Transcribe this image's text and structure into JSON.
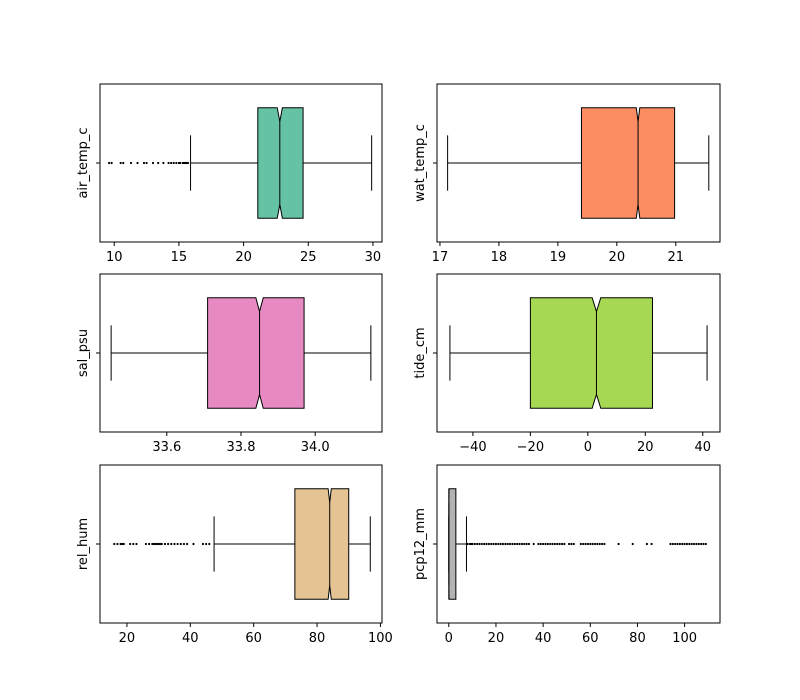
{
  "chart_data": [
    {
      "type": "box",
      "notched": true,
      "orientation": "horizontal",
      "ylabel": "air_temp_c",
      "color": "#66c2a5",
      "xlim": [
        8.9,
        30.7
      ],
      "xticks": [
        10,
        15,
        20,
        25,
        30
      ],
      "box": {
        "whisker_low": 15.9,
        "q1": 21.1,
        "median": 22.8,
        "q3": 24.6,
        "whisker_high": 29.9,
        "notch_low": 22.6,
        "notch_high": 23.0
      },
      "outliers": [
        9.6,
        9.8,
        10.5,
        10.7,
        11.3,
        11.8,
        12.3,
        12.5,
        13.0,
        13.4,
        13.8,
        14.2,
        14.4,
        14.6,
        14.8,
        15.0,
        15.1,
        15.3,
        15.4,
        15.5,
        15.6,
        15.7
      ]
    },
    {
      "type": "box",
      "notched": true,
      "orientation": "horizontal",
      "ylabel": "wat_temp_c",
      "color": "#fc8d62",
      "xlim": [
        16.95,
        21.75
      ],
      "xticks": [
        17,
        18,
        19,
        20,
        21
      ],
      "box": {
        "whisker_low": 17.13,
        "q1": 19.4,
        "median": 20.36,
        "q3": 20.98,
        "whisker_high": 21.56,
        "notch_low": 20.33,
        "notch_high": 20.39
      },
      "outliers": []
    },
    {
      "type": "box",
      "notched": true,
      "orientation": "horizontal",
      "ylabel": "sal_psu",
      "color": "#e78ac3",
      "xlim": [
        33.42,
        34.18
      ],
      "xticks": [
        33.6,
        33.8,
        34.0
      ],
      "xtick_labels": [
        "33.6",
        "33.8",
        "34.0"
      ],
      "box": {
        "whisker_low": 33.45,
        "q1": 33.71,
        "median": 33.85,
        "q3": 33.97,
        "whisker_high": 34.15,
        "notch_low": 33.84,
        "notch_high": 33.86
      },
      "outliers": []
    },
    {
      "type": "box",
      "notched": true,
      "orientation": "horizontal",
      "ylabel": "tide_cm",
      "color": "#a6d854",
      "xlim": [
        -52.5,
        46
      ],
      "xticks": [
        -40,
        -20,
        0,
        20,
        40
      ],
      "xtick_labels": [
        "−40",
        "−20",
        "0",
        "20",
        "40"
      ],
      "box": {
        "whisker_low": -48.0,
        "q1": -20.0,
        "median": 3.0,
        "q3": 22.5,
        "whisker_high": 41.5,
        "notch_low": 1.5,
        "notch_high": 4.5
      },
      "outliers": []
    },
    {
      "type": "box",
      "notched": true,
      "orientation": "horizontal",
      "ylabel": "rel_hum",
      "color": "#e5c494",
      "xlim": [
        11.5,
        100.5
      ],
      "xticks": [
        20,
        40,
        60,
        80,
        100
      ],
      "box": {
        "whisker_low": 47.5,
        "q1": 73.0,
        "median": 84.0,
        "q3": 90.0,
        "whisker_high": 96.8,
        "notch_low": 83.5,
        "notch_high": 84.5
      },
      "outliers": [
        16,
        17,
        18,
        18.5,
        19,
        21,
        22,
        23,
        26,
        27,
        28,
        28.5,
        29,
        29.5,
        30,
        30.5,
        31,
        32,
        33,
        34,
        35,
        36,
        37,
        38,
        39,
        41,
        44,
        45,
        46
      ]
    },
    {
      "type": "box",
      "notched": true,
      "orientation": "horizontal",
      "ylabel": "pcp12_mm",
      "color": "#b3b3b3",
      "xlim": [
        -5,
        115
      ],
      "xticks": [
        0,
        20,
        40,
        60,
        80,
        100
      ],
      "box": {
        "whisker_low": 0.0,
        "q1": 0.0,
        "median": 0.05,
        "q3": 3.0,
        "whisker_high": 7.5,
        "notch_low": 0.0,
        "notch_high": 0.1
      },
      "outliers": [
        8,
        9,
        9.5,
        10,
        11,
        12,
        13,
        14,
        15,
        16,
        17,
        18,
        19,
        20,
        21,
        22,
        23,
        24,
        25,
        26,
        27,
        28,
        29,
        30,
        31,
        32,
        33,
        34,
        36,
        38,
        39,
        40,
        41,
        42,
        43,
        44,
        45,
        46,
        47,
        48,
        49,
        51,
        52,
        53,
        56,
        57,
        58,
        59,
        60,
        61,
        62,
        63,
        64,
        65,
        66,
        72,
        78,
        84,
        86,
        94,
        95,
        96,
        97,
        98,
        99,
        100,
        101,
        102,
        103,
        104,
        105,
        106,
        107,
        108,
        109
      ]
    }
  ]
}
